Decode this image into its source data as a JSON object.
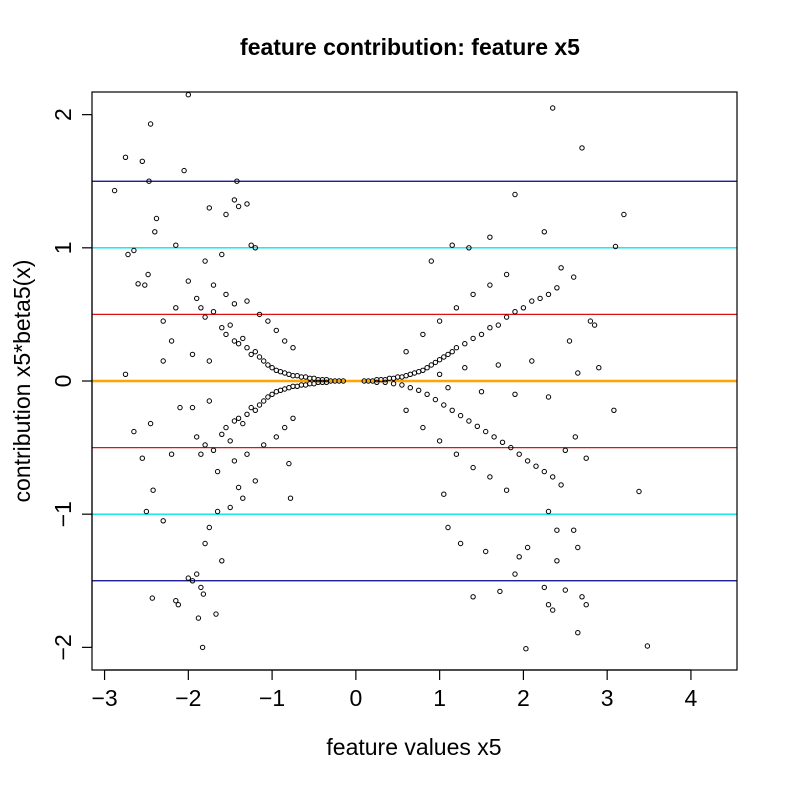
{
  "chart_data": {
    "type": "scatter",
    "title": "feature contribution: feature x5",
    "xlabel": "feature values x5",
    "ylabel": "contribution  x5*beta5(x)",
    "xlim": [
      -3.15,
      4.55
    ],
    "ylim": [
      -2.17,
      2.17
    ],
    "x_ticks": [
      -3,
      -2,
      -1,
      0,
      1,
      2,
      3,
      4
    ],
    "x_tick_labels": [
      "−3",
      "−2",
      "−1",
      "0",
      "1",
      "2",
      "3",
      "4"
    ],
    "y_ticks": [
      -2,
      -1,
      0,
      1,
      2
    ],
    "y_tick_labels": [
      "−2",
      "−1",
      "0",
      "1",
      "2"
    ],
    "grid": false,
    "point_style": "open-circle",
    "point_color": "#000000",
    "reference_lines": [
      {
        "y": 1.5,
        "color": "#00008b"
      },
      {
        "y": 1.0,
        "color": "#00e5ee"
      },
      {
        "y": 0.5,
        "color": "#dd1111"
      },
      {
        "y": 0.0,
        "color": "#ffa500"
      },
      {
        "y": -0.5,
        "color": "#dd1111"
      },
      {
        "y": -1.0,
        "color": "#00e5ee"
      },
      {
        "y": -1.5,
        "color": "#00008b"
      }
    ],
    "points": [
      [
        -2.88,
        1.43
      ],
      [
        -2.75,
        1.68
      ],
      [
        -2.72,
        0.95
      ],
      [
        -2.65,
        0.98
      ],
      [
        -2.55,
        1.65
      ],
      [
        -2.45,
        1.93
      ],
      [
        -2.47,
        1.5
      ],
      [
        -2.6,
        0.73
      ],
      [
        -2.52,
        0.72
      ],
      [
        -2.48,
        0.8
      ],
      [
        -2.4,
        1.12
      ],
      [
        -2.38,
        1.22
      ],
      [
        -2.3,
        0.45
      ],
      [
        -2.15,
        1.02
      ],
      [
        -2.05,
        1.58
      ],
      [
        -2.0,
        2.15
      ],
      [
        -1.75,
        1.3
      ],
      [
        -1.55,
        1.25
      ],
      [
        -1.45,
        1.36
      ],
      [
        -1.42,
        1.5
      ],
      [
        -1.4,
        1.31
      ],
      [
        -1.3,
        1.33
      ],
      [
        -1.2,
        1.0
      ],
      [
        -1.25,
        1.02
      ],
      [
        -1.8,
        0.9
      ],
      [
        -1.6,
        0.95
      ],
      [
        -2.75,
        0.05
      ],
      [
        -2.65,
        -0.38
      ],
      [
        -2.55,
        -0.58
      ],
      [
        -2.45,
        -0.32
      ],
      [
        -2.42,
        -0.82
      ],
      [
        -2.5,
        -0.98
      ],
      [
        -2.3,
        -1.05
      ],
      [
        -2.43,
        -1.63
      ],
      [
        -2.15,
        -1.65
      ],
      [
        -2.12,
        -1.68
      ],
      [
        -2.0,
        -1.48
      ],
      [
        -1.95,
        -1.5
      ],
      [
        -1.9,
        -1.45
      ],
      [
        -1.85,
        -1.55
      ],
      [
        -1.82,
        -1.6
      ],
      [
        -1.88,
        -1.78
      ],
      [
        -1.83,
        -2.0
      ],
      [
        -1.67,
        -1.75
      ],
      [
        -1.6,
        -1.35
      ],
      [
        -1.8,
        -1.22
      ],
      [
        -1.75,
        -1.1
      ],
      [
        -1.65,
        -0.98
      ],
      [
        -1.5,
        -0.95
      ],
      [
        -1.4,
        -0.8
      ],
      [
        -1.35,
        -0.88
      ],
      [
        -1.2,
        -0.75
      ],
      [
        -0.8,
        -0.62
      ],
      [
        -0.78,
        -0.88
      ],
      [
        -2.0,
        0.75
      ],
      [
        -1.9,
        0.62
      ],
      [
        -1.85,
        0.55
      ],
      [
        -1.8,
        0.48
      ],
      [
        -1.7,
        0.52
      ],
      [
        -1.6,
        0.4
      ],
      [
        -1.55,
        0.35
      ],
      [
        -1.5,
        0.42
      ],
      [
        -1.45,
        0.3
      ],
      [
        -1.4,
        0.28
      ],
      [
        -1.35,
        0.32
      ],
      [
        -1.3,
        0.25
      ],
      [
        -1.25,
        0.2
      ],
      [
        -1.2,
        0.22
      ],
      [
        -1.15,
        0.18
      ],
      [
        -1.1,
        0.15
      ],
      [
        -1.05,
        0.12
      ],
      [
        -1.0,
        0.1
      ],
      [
        -0.95,
        0.08
      ],
      [
        -0.9,
        0.07
      ],
      [
        -0.85,
        0.06
      ],
      [
        -0.8,
        0.05
      ],
      [
        -0.75,
        0.04
      ],
      [
        -0.7,
        0.04
      ],
      [
        -0.65,
        0.03
      ],
      [
        -0.6,
        0.03
      ],
      [
        -0.55,
        0.02
      ],
      [
        -0.5,
        0.02
      ],
      [
        -0.45,
        0.01
      ],
      [
        -0.4,
        0.01
      ],
      [
        -0.35,
        0.01
      ],
      [
        -0.3,
        0.0
      ],
      [
        -0.25,
        0.0
      ],
      [
        -0.2,
        0.0
      ],
      [
        -0.15,
        0.0
      ],
      [
        -1.9,
        -0.42
      ],
      [
        -1.85,
        -0.55
      ],
      [
        -1.8,
        -0.48
      ],
      [
        -1.7,
        -0.52
      ],
      [
        -1.6,
        -0.4
      ],
      [
        -1.55,
        -0.35
      ],
      [
        -1.5,
        -0.45
      ],
      [
        -1.45,
        -0.3
      ],
      [
        -1.4,
        -0.28
      ],
      [
        -1.35,
        -0.32
      ],
      [
        -1.3,
        -0.25
      ],
      [
        -1.25,
        -0.2
      ],
      [
        -1.2,
        -0.22
      ],
      [
        -1.15,
        -0.18
      ],
      [
        -1.1,
        -0.15
      ],
      [
        -1.05,
        -0.12
      ],
      [
        -1.0,
        -0.1
      ],
      [
        -0.95,
        -0.08
      ],
      [
        -0.9,
        -0.07
      ],
      [
        -0.85,
        -0.06
      ],
      [
        -0.8,
        -0.05
      ],
      [
        -0.75,
        -0.04
      ],
      [
        -0.7,
        -0.04
      ],
      [
        -0.65,
        -0.03
      ],
      [
        -0.6,
        -0.03
      ],
      [
        -0.55,
        -0.02
      ],
      [
        -0.5,
        -0.02
      ],
      [
        -0.45,
        -0.01
      ],
      [
        -0.4,
        -0.01
      ],
      [
        -0.35,
        -0.01
      ],
      [
        -1.7,
        0.72
      ],
      [
        -1.55,
        0.65
      ],
      [
        -1.45,
        0.58
      ],
      [
        -1.3,
        0.6
      ],
      [
        -1.15,
        0.5
      ],
      [
        -1.05,
        0.45
      ],
      [
        -0.95,
        0.38
      ],
      [
        -0.85,
        0.3
      ],
      [
        -0.75,
        0.25
      ],
      [
        -1.65,
        -0.68
      ],
      [
        -1.45,
        -0.6
      ],
      [
        -1.3,
        -0.55
      ],
      [
        -1.1,
        -0.48
      ],
      [
        -0.95,
        -0.42
      ],
      [
        -0.85,
        -0.35
      ],
      [
        -0.75,
        -0.28
      ],
      [
        -2.2,
        0.3
      ],
      [
        -2.1,
        -0.2
      ],
      [
        -2.2,
        -0.55
      ],
      [
        -2.3,
        0.15
      ],
      [
        -2.15,
        0.55
      ],
      [
        -1.95,
        0.2
      ],
      [
        -1.95,
        -0.2
      ],
      [
        -1.75,
        0.15
      ],
      [
        -1.75,
        -0.15
      ],
      [
        0.1,
        0.0
      ],
      [
        0.15,
        0.0
      ],
      [
        0.2,
        0.0
      ],
      [
        0.25,
        0.01
      ],
      [
        0.3,
        0.01
      ],
      [
        0.35,
        0.01
      ],
      [
        0.4,
        0.02
      ],
      [
        0.45,
        0.02
      ],
      [
        0.5,
        0.03
      ],
      [
        0.55,
        0.03
      ],
      [
        0.6,
        0.04
      ],
      [
        0.65,
        0.05
      ],
      [
        0.7,
        0.06
      ],
      [
        0.75,
        0.07
      ],
      [
        0.8,
        0.08
      ],
      [
        0.85,
        0.1
      ],
      [
        0.9,
        0.12
      ],
      [
        0.95,
        0.14
      ],
      [
        1.0,
        0.16
      ],
      [
        1.05,
        0.18
      ],
      [
        1.1,
        0.2
      ],
      [
        1.15,
        0.22
      ],
      [
        1.2,
        0.25
      ],
      [
        1.3,
        0.28
      ],
      [
        1.4,
        0.32
      ],
      [
        1.5,
        0.35
      ],
      [
        1.6,
        0.4
      ],
      [
        1.7,
        0.42
      ],
      [
        1.8,
        0.48
      ],
      [
        1.9,
        0.52
      ],
      [
        2.0,
        0.55
      ],
      [
        2.1,
        0.6
      ],
      [
        2.2,
        0.62
      ],
      [
        2.3,
        0.65
      ],
      [
        2.4,
        0.7
      ],
      [
        0.25,
        -0.01
      ],
      [
        0.35,
        -0.01
      ],
      [
        0.45,
        -0.02
      ],
      [
        0.55,
        -0.03
      ],
      [
        0.65,
        -0.05
      ],
      [
        0.75,
        -0.07
      ],
      [
        0.85,
        -0.1
      ],
      [
        0.95,
        -0.14
      ],
      [
        1.05,
        -0.18
      ],
      [
        1.15,
        -0.22
      ],
      [
        1.25,
        -0.26
      ],
      [
        1.35,
        -0.3
      ],
      [
        1.45,
        -0.34
      ],
      [
        1.55,
        -0.38
      ],
      [
        1.65,
        -0.42
      ],
      [
        1.75,
        -0.46
      ],
      [
        1.85,
        -0.5
      ],
      [
        1.95,
        -0.55
      ],
      [
        2.05,
        -0.6
      ],
      [
        2.15,
        -0.64
      ],
      [
        2.25,
        -0.68
      ],
      [
        2.35,
        -0.72
      ],
      [
        2.45,
        -0.78
      ],
      [
        0.6,
        0.22
      ],
      [
        0.8,
        0.35
      ],
      [
        1.0,
        0.45
      ],
      [
        1.2,
        0.55
      ],
      [
        1.4,
        0.65
      ],
      [
        1.6,
        0.72
      ],
      [
        1.8,
        0.8
      ],
      [
        0.6,
        -0.22
      ],
      [
        0.8,
        -0.35
      ],
      [
        1.0,
        -0.45
      ],
      [
        1.2,
        -0.55
      ],
      [
        1.4,
        -0.65
      ],
      [
        1.6,
        -0.72
      ],
      [
        1.8,
        -0.82
      ],
      [
        0.9,
        0.9
      ],
      [
        1.15,
        1.02
      ],
      [
        1.35,
        1.0
      ],
      [
        1.6,
        1.08
      ],
      [
        1.9,
        1.4
      ],
      [
        2.25,
        1.12
      ],
      [
        2.35,
        2.05
      ],
      [
        2.45,
        0.85
      ],
      [
        2.6,
        0.78
      ],
      [
        2.7,
        1.75
      ],
      [
        2.8,
        0.45
      ],
      [
        2.85,
        0.42
      ],
      [
        3.1,
        1.01
      ],
      [
        3.2,
        1.25
      ],
      [
        2.55,
        0.3
      ],
      [
        2.65,
        0.06
      ],
      [
        2.9,
        0.1
      ],
      [
        3.08,
        -0.22
      ],
      [
        2.62,
        -0.42
      ],
      [
        2.75,
        -0.58
      ],
      [
        2.5,
        -0.52
      ],
      [
        2.3,
        -0.98
      ],
      [
        2.4,
        -1.12
      ],
      [
        2.6,
        -1.12
      ],
      [
        2.65,
        -1.25
      ],
      [
        2.4,
        -1.35
      ],
      [
        2.25,
        -1.55
      ],
      [
        2.3,
        -1.68
      ],
      [
        2.35,
        -1.72
      ],
      [
        2.5,
        -1.57
      ],
      [
        2.7,
        -1.62
      ],
      [
        2.75,
        -1.68
      ],
      [
        2.65,
        -1.89
      ],
      [
        2.03,
        -2.01
      ],
      [
        1.9,
        -1.45
      ],
      [
        1.95,
        -1.32
      ],
      [
        2.05,
        -1.25
      ],
      [
        1.72,
        -1.58
      ],
      [
        1.4,
        -1.62
      ],
      [
        1.25,
        -1.22
      ],
      [
        1.1,
        -1.1
      ],
      [
        1.05,
        -0.85
      ],
      [
        1.55,
        -1.28
      ],
      [
        3.38,
        -0.83
      ],
      [
        3.48,
        -1.99
      ],
      [
        1.0,
        0.05
      ],
      [
        1.1,
        -0.05
      ],
      [
        1.3,
        0.1
      ],
      [
        1.5,
        -0.08
      ],
      [
        1.7,
        0.12
      ],
      [
        1.9,
        -0.1
      ],
      [
        2.1,
        0.15
      ],
      [
        2.3,
        -0.12
      ]
    ]
  }
}
